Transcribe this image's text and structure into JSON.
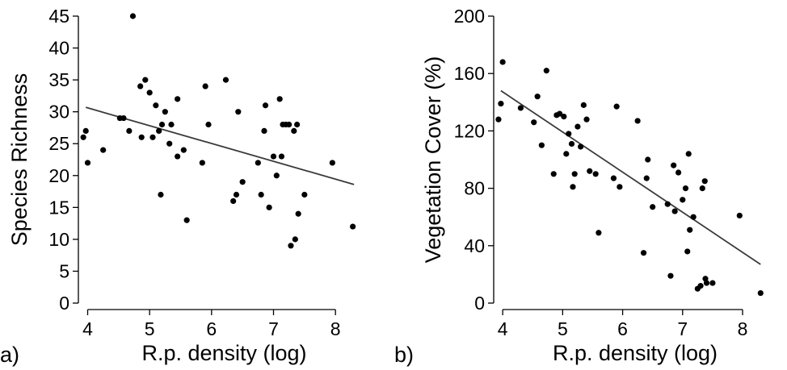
{
  "figure": {
    "panels": [
      {
        "tag": "a)"
      },
      {
        "tag": "b)"
      }
    ]
  },
  "chart_data": [
    {
      "type": "scatter",
      "panel": "a)",
      "title": "",
      "xlabel": "R.p. density (log)",
      "ylabel": "Species Richness",
      "xlim": [
        3.85,
        8.35
      ],
      "ylim": [
        0,
        45
      ],
      "xticks": [
        4,
        5,
        6,
        7,
        8
      ],
      "yticks": [
        0,
        5,
        10,
        15,
        20,
        25,
        30,
        35,
        40,
        45
      ],
      "grid": false,
      "trendline": {
        "x": [
          3.97,
          8.3
        ],
        "y": [
          30.7,
          18.6
        ]
      },
      "points": [
        [
          3.93,
          26
        ],
        [
          3.97,
          27
        ],
        [
          4.0,
          22
        ],
        [
          4.25,
          24
        ],
        [
          4.52,
          29
        ],
        [
          4.58,
          29
        ],
        [
          4.67,
          27
        ],
        [
          4.73,
          45
        ],
        [
          4.85,
          34
        ],
        [
          4.87,
          26
        ],
        [
          4.93,
          35
        ],
        [
          5.0,
          33
        ],
        [
          5.05,
          26
        ],
        [
          5.1,
          31
        ],
        [
          5.15,
          27
        ],
        [
          5.18,
          17
        ],
        [
          5.2,
          28
        ],
        [
          5.25,
          30
        ],
        [
          5.32,
          25
        ],
        [
          5.35,
          28
        ],
        [
          5.45,
          32
        ],
        [
          5.45,
          23
        ],
        [
          5.55,
          24
        ],
        [
          5.6,
          13
        ],
        [
          5.85,
          22
        ],
        [
          5.9,
          34
        ],
        [
          5.95,
          28
        ],
        [
          6.23,
          35
        ],
        [
          6.35,
          16
        ],
        [
          6.4,
          17
        ],
        [
          6.43,
          30
        ],
        [
          6.5,
          19
        ],
        [
          6.75,
          22
        ],
        [
          6.8,
          17
        ],
        [
          6.85,
          27
        ],
        [
          6.87,
          31
        ],
        [
          6.93,
          15
        ],
        [
          7.0,
          23
        ],
        [
          7.05,
          20
        ],
        [
          7.1,
          32
        ],
        [
          7.13,
          23
        ],
        [
          7.15,
          28
        ],
        [
          7.2,
          28
        ],
        [
          7.25,
          28
        ],
        [
          7.28,
          9
        ],
        [
          7.33,
          27
        ],
        [
          7.35,
          10
        ],
        [
          7.38,
          28
        ],
        [
          7.4,
          14
        ],
        [
          7.5,
          17
        ],
        [
          7.95,
          22
        ],
        [
          8.28,
          12
        ]
      ]
    },
    {
      "type": "scatter",
      "panel": "b)",
      "title": "",
      "xlabel": "R.p. density (log)",
      "ylabel": "Vegetation Cover (%)",
      "xlim": [
        3.85,
        8.35
      ],
      "ylim": [
        0,
        200
      ],
      "xticks": [
        4,
        5,
        6,
        7,
        8
      ],
      "yticks": [
        0,
        40,
        80,
        120,
        160,
        200
      ],
      "grid": false,
      "trendline": {
        "x": [
          3.97,
          8.3
        ],
        "y": [
          148,
          27
        ]
      },
      "points": [
        [
          3.93,
          128
        ],
        [
          3.97,
          139
        ],
        [
          4.0,
          168
        ],
        [
          4.3,
          136
        ],
        [
          4.52,
          126
        ],
        [
          4.58,
          144
        ],
        [
          4.65,
          110
        ],
        [
          4.73,
          162
        ],
        [
          4.85,
          90
        ],
        [
          4.9,
          131
        ],
        [
          4.95,
          132
        ],
        [
          5.02,
          130
        ],
        [
          5.06,
          104
        ],
        [
          5.1,
          118
        ],
        [
          5.15,
          111
        ],
        [
          5.17,
          81
        ],
        [
          5.2,
          90
        ],
        [
          5.25,
          123
        ],
        [
          5.3,
          109
        ],
        [
          5.35,
          138
        ],
        [
          5.4,
          128
        ],
        [
          5.45,
          92
        ],
        [
          5.55,
          90
        ],
        [
          5.6,
          49
        ],
        [
          5.85,
          87
        ],
        [
          5.9,
          137
        ],
        [
          5.95,
          81
        ],
        [
          6.25,
          127
        ],
        [
          6.35,
          35
        ],
        [
          6.42,
          100
        ],
        [
          6.4,
          87
        ],
        [
          6.5,
          67
        ],
        [
          6.75,
          69
        ],
        [
          6.8,
          19
        ],
        [
          6.85,
          96
        ],
        [
          6.87,
          64
        ],
        [
          6.93,
          91
        ],
        [
          7.0,
          72
        ],
        [
          7.05,
          80
        ],
        [
          7.1,
          104
        ],
        [
          7.08,
          36
        ],
        [
          7.12,
          51
        ],
        [
          7.18,
          60
        ],
        [
          7.25,
          10
        ],
        [
          7.3,
          12
        ],
        [
          7.33,
          80
        ],
        [
          7.37,
          85
        ],
        [
          7.38,
          17
        ],
        [
          7.4,
          14
        ],
        [
          7.5,
          14
        ],
        [
          7.95,
          61
        ],
        [
          8.3,
          7
        ]
      ]
    }
  ]
}
